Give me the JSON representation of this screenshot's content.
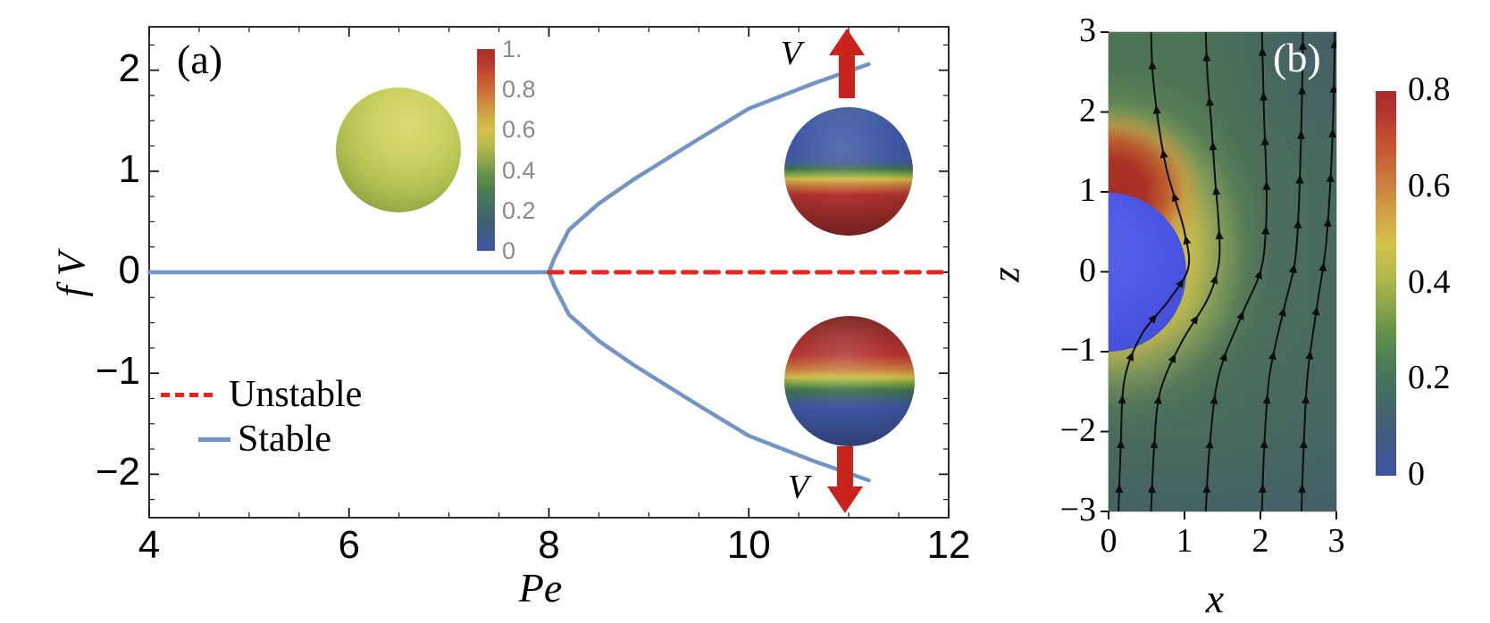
{
  "panel_a": {
    "label": "(a)",
    "xlabel": "Pe",
    "ylabel": "f V",
    "x_tick_labels": [
      "4",
      "6",
      "8",
      "10",
      "12"
    ],
    "y_tick_labels": [
      "2",
      "1",
      "0",
      "−1",
      "−2"
    ],
    "legend": {
      "unstable_label": "Unstable",
      "stable_label": "Stable"
    },
    "colorbar_tick_labels": [
      "1.",
      "0.8",
      "0.6",
      "0.4",
      "0.2",
      "0"
    ],
    "arrow_label_top": "V",
    "arrow_label_bottom": "V",
    "colors": {
      "stable_line": "#7295c5",
      "unstable_line": "#e8251f",
      "arrow_red": "#c8231c"
    }
  },
  "panel_b": {
    "label": "(b)",
    "xlabel": "x",
    "ylabel": "z",
    "x_tick_labels": [
      "0",
      "1",
      "2",
      "3"
    ],
    "z_tick_labels": [
      "3",
      "2",
      "1",
      "0",
      "−1",
      "−2",
      "−3"
    ],
    "colorbar_tick_labels": [
      "0.8",
      "0.6",
      "0.4",
      "0.2",
      "0"
    ]
  },
  "chart_data": [
    {
      "type": "line",
      "title": "(a) Bifurcation diagram: pumping/swimming states",
      "xlabel": "Pe",
      "ylabel": "f V",
      "xlim": [
        4,
        12
      ],
      "ylim": [
        -2.43,
        2.43
      ],
      "x_ticks": [
        4,
        6,
        8,
        10,
        12
      ],
      "y_ticks": [
        2,
        1,
        0,
        -1,
        -2
      ],
      "x_minor_step": 0.5,
      "y_minor_step": 0.25,
      "grid": false,
      "legend_position": "lower-left",
      "bifurcation_point": [
        8.0,
        0
      ],
      "series": [
        {
          "name": "stable-base",
          "style": "solid",
          "color": "#7295c5",
          "points": [
            [
              4,
              0
            ],
            [
              8.0,
              0
            ]
          ]
        },
        {
          "name": "stable-upper-branch",
          "style": "solid",
          "color": "#7295c5",
          "points": [
            [
              8.0,
              0
            ],
            [
              8.05,
              0.13
            ],
            [
              8.2,
              0.42
            ],
            [
              8.5,
              0.68
            ],
            [
              8.85,
              0.92
            ],
            [
              9.5,
              1.32
            ],
            [
              10.0,
              1.62
            ],
            [
              10.65,
              1.87
            ],
            [
              11.2,
              2.06
            ]
          ]
        },
        {
          "name": "stable-lower-branch",
          "style": "solid",
          "color": "#7295c5",
          "points": [
            [
              8.0,
              0
            ],
            [
              8.05,
              -0.13
            ],
            [
              8.2,
              -0.42
            ],
            [
              8.5,
              -0.68
            ],
            [
              8.85,
              -0.92
            ],
            [
              9.5,
              -1.32
            ],
            [
              10.0,
              -1.62
            ],
            [
              10.65,
              -1.87
            ],
            [
              11.2,
              -2.06
            ]
          ]
        },
        {
          "name": "unstable",
          "style": "dashed",
          "color": "#e8251f",
          "points": [
            [
              8.0,
              0
            ],
            [
              12,
              0
            ]
          ]
        }
      ],
      "legend": [
        {
          "label": "Unstable",
          "style": "dashed",
          "color": "#e8251f"
        },
        {
          "label": "Stable",
          "style": "solid",
          "color": "#7295c5"
        }
      ],
      "colorbar": {
        "range": [
          0,
          1
        ],
        "tick_values": [
          1.0,
          0.8,
          0.6,
          0.4,
          0.2,
          0
        ]
      },
      "annotations": [
        {
          "name": "uniform-concentration-sphere",
          "description": "uniform yellow-green sphere, value ~0.5",
          "at": [
            6.0,
            1.2
          ]
        },
        {
          "name": "polarized-sphere-swim-up",
          "description": "sphere blue top, red bottom, red arrow V up",
          "at": [
            10.9,
            1.0
          ]
        },
        {
          "name": "polarized-sphere-swim-down",
          "description": "sphere red top, blue bottom, red arrow V down",
          "at": [
            10.9,
            -1.05
          ]
        }
      ]
    },
    {
      "type": "heatmap",
      "title": "(b) Concentration field and streamlines around sphere",
      "xlabel": "x",
      "ylabel": "z",
      "xlim": [
        0,
        3
      ],
      "ylim": [
        -3,
        3
      ],
      "x_ticks": [
        0,
        1,
        2,
        3
      ],
      "z_ticks": [
        3,
        2,
        1,
        0,
        -1,
        -2,
        -3
      ],
      "colorbar": {
        "range": [
          0,
          0.8
        ],
        "tick_values": [
          0.8,
          0.6,
          0.4,
          0.2,
          0
        ]
      },
      "sphere": {
        "center": [
          0,
          0
        ],
        "radius": 1,
        "value": 0,
        "color": "#4a55e2"
      },
      "hotspot": {
        "center": [
          0,
          1
        ],
        "peak_value": 0.8,
        "description": "red concentration maximum at top pole fading through yellow to green"
      },
      "background_value_range": [
        0.1,
        0.35
      ],
      "flow_direction": "up",
      "streamlines": [
        [
          [
            0.13,
            -3
          ],
          [
            0.16,
            -2.2
          ],
          [
            0.21,
            -1.35
          ],
          [
            0.44,
            -0.78
          ],
          [
            0.8,
            -0.35
          ],
          [
            1.05,
            0.05
          ],
          [
            1.0,
            0.5
          ],
          [
            0.88,
            0.9
          ],
          [
            0.76,
            1.3
          ],
          [
            0.65,
            1.9
          ],
          [
            0.58,
            2.5
          ],
          [
            0.56,
            3
          ]
        ],
        [
          [
            0.56,
            -3
          ],
          [
            0.6,
            -2.2
          ],
          [
            0.68,
            -1.5
          ],
          [
            0.95,
            -0.9
          ],
          [
            1.3,
            -0.35
          ],
          [
            1.45,
            0.1
          ],
          [
            1.45,
            0.6
          ],
          [
            1.4,
            1.2
          ],
          [
            1.35,
            1.9
          ],
          [
            1.3,
            2.5
          ],
          [
            1.28,
            3
          ]
        ],
        [
          [
            1.28,
            -3
          ],
          [
            1.33,
            -2.2
          ],
          [
            1.45,
            -1.3
          ],
          [
            1.75,
            -0.55
          ],
          [
            2.0,
            0.0
          ],
          [
            2.07,
            0.5
          ],
          [
            2.08,
            1.1
          ],
          [
            2.05,
            1.9
          ],
          [
            2.02,
            3
          ]
        ],
        [
          [
            2.02,
            -3
          ],
          [
            2.05,
            -2.2
          ],
          [
            2.12,
            -1.3
          ],
          [
            2.3,
            -0.5
          ],
          [
            2.45,
            0.1
          ],
          [
            2.5,
            0.7
          ],
          [
            2.53,
            1.5
          ],
          [
            2.55,
            2.3
          ],
          [
            2.56,
            3
          ]
        ],
        [
          [
            2.54,
            -3
          ],
          [
            2.57,
            -2.2
          ],
          [
            2.62,
            -1.3
          ],
          [
            2.75,
            -0.4
          ],
          [
            2.86,
            0.3
          ],
          [
            2.92,
            1.1
          ],
          [
            2.96,
            2.0
          ],
          [
            2.98,
            3
          ]
        ]
      ]
    }
  ]
}
